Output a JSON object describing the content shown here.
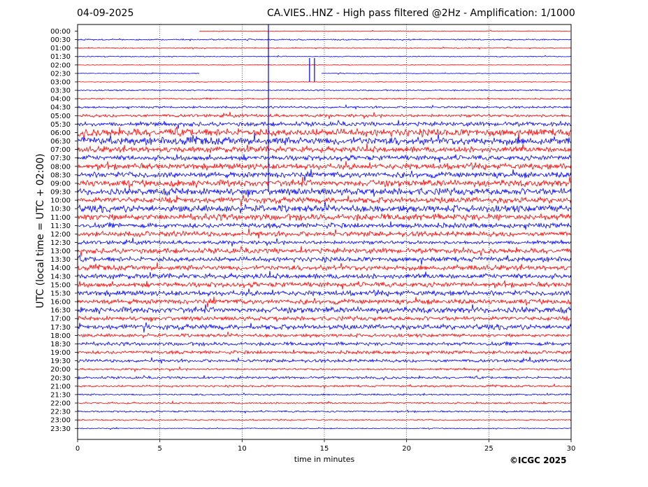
{
  "header": {
    "date": "04-09-2025",
    "title": "CA.VIES..HNZ - High pass filtered @2Hz - Amplification: 1/1000"
  },
  "footer": {
    "copyright": "©ICGC 2025"
  },
  "chart_data": {
    "type": "line",
    "title": "CA.VIES..HNZ - High pass filtered @2Hz - Amplification: 1/1000",
    "xlabel": "time in minutes",
    "ylabel": "UTC (local time = UTC + 02:00)",
    "xlim": [
      0,
      30
    ],
    "xticks": [
      0,
      5,
      10,
      15,
      20,
      25,
      30
    ],
    "grid": "vertical dotted at 5, 10, 15, 20, 25",
    "colors": {
      "red": "#ff0000",
      "blue": "#0000ff"
    },
    "series": [
      {
        "row": "00:00",
        "color": "red",
        "amplitude": 0.05,
        "start": 7.4
      },
      {
        "row": "00:30",
        "color": "blue",
        "amplitude": 0.08
      },
      {
        "row": "01:00",
        "color": "red",
        "amplitude": 0.07
      },
      {
        "row": "01:30",
        "color": "blue",
        "amplitude": 0.06
      },
      {
        "row": "02:00",
        "color": "red",
        "amplitude": 0.04
      },
      {
        "row": "02:30",
        "color": "blue",
        "amplitude": 0.05,
        "gap": [
          7.4,
          14.8
        ]
      },
      {
        "row": "03:00",
        "color": "red",
        "amplitude": 0.04
      },
      {
        "row": "03:30",
        "color": "blue",
        "amplitude": 0.08
      },
      {
        "row": "04:00",
        "color": "red",
        "amplitude": 0.09
      },
      {
        "row": "04:30",
        "color": "blue",
        "amplitude": 0.12
      },
      {
        "row": "05:00",
        "color": "red",
        "amplitude": 0.18
      },
      {
        "row": "05:30",
        "color": "blue",
        "amplitude": 0.25
      },
      {
        "row": "06:00",
        "color": "red",
        "amplitude": 0.45
      },
      {
        "row": "06:30",
        "color": "blue",
        "amplitude": 0.45
      },
      {
        "row": "07:00",
        "color": "red",
        "amplitude": 0.35
      },
      {
        "row": "07:30",
        "color": "blue",
        "amplitude": 0.3
      },
      {
        "row": "08:00",
        "color": "red",
        "amplitude": 0.35
      },
      {
        "row": "08:30",
        "color": "blue",
        "amplitude": 0.35
      },
      {
        "row": "09:00",
        "color": "red",
        "amplitude": 0.4
      },
      {
        "row": "09:30",
        "color": "blue",
        "amplitude": 0.4
      },
      {
        "row": "10:00",
        "color": "red",
        "amplitude": 0.35
      },
      {
        "row": "10:30",
        "color": "blue",
        "amplitude": 0.4
      },
      {
        "row": "11:00",
        "color": "red",
        "amplitude": 0.4
      },
      {
        "row": "11:30",
        "color": "blue",
        "amplitude": 0.3
      },
      {
        "row": "12:00",
        "color": "red",
        "amplitude": 0.3
      },
      {
        "row": "12:30",
        "color": "blue",
        "amplitude": 0.22
      },
      {
        "row": "13:00",
        "color": "red",
        "amplitude": 0.3
      },
      {
        "row": "13:30",
        "color": "blue",
        "amplitude": 0.3
      },
      {
        "row": "14:00",
        "color": "red",
        "amplitude": 0.3
      },
      {
        "row": "14:30",
        "color": "blue",
        "amplitude": 0.3
      },
      {
        "row": "15:00",
        "color": "red",
        "amplitude": 0.3
      },
      {
        "row": "15:30",
        "color": "blue",
        "amplitude": 0.3
      },
      {
        "row": "16:00",
        "color": "red",
        "amplitude": 0.3
      },
      {
        "row": "16:30",
        "color": "blue",
        "amplitude": 0.35
      },
      {
        "row": "17:00",
        "color": "red",
        "amplitude": 0.25
      },
      {
        "row": "17:30",
        "color": "blue",
        "amplitude": 0.3
      },
      {
        "row": "18:00",
        "color": "red",
        "amplitude": 0.2
      },
      {
        "row": "18:30",
        "color": "blue",
        "amplitude": 0.22
      },
      {
        "row": "19:00",
        "color": "red",
        "amplitude": 0.2
      },
      {
        "row": "19:30",
        "color": "blue",
        "amplitude": 0.18
      },
      {
        "row": "20:00",
        "color": "red",
        "amplitude": 0.12
      },
      {
        "row": "20:30",
        "color": "blue",
        "amplitude": 0.14
      },
      {
        "row": "21:00",
        "color": "red",
        "amplitude": 0.12
      },
      {
        "row": "21:30",
        "color": "blue",
        "amplitude": 0.1
      },
      {
        "row": "22:00",
        "color": "red",
        "amplitude": 0.1
      },
      {
        "row": "22:30",
        "color": "blue",
        "amplitude": 0.1
      },
      {
        "row": "23:00",
        "color": "red",
        "amplitude": 0.08
      },
      {
        "row": "23:30",
        "color": "blue",
        "amplitude": 0.06
      }
    ],
    "events": [
      {
        "row_from": "00:00",
        "row_to": "09:30",
        "minute": 11.6,
        "color": "blue",
        "label": "spike"
      },
      {
        "row_from": "02:00",
        "row_to": "03:00",
        "minute": 14.1,
        "color": "blue",
        "label": "spike"
      },
      {
        "row_from": "02:00",
        "row_to": "03:00",
        "minute": 14.4,
        "color": "blue",
        "label": "spike"
      }
    ]
  }
}
